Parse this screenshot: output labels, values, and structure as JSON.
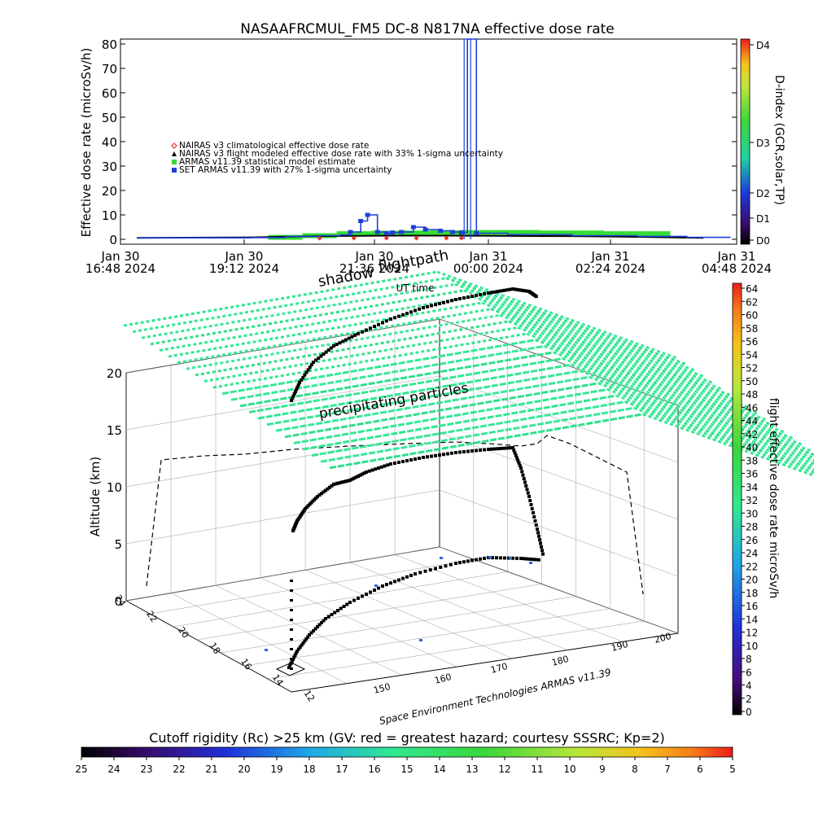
{
  "top_chart": {
    "title": "NASAAFRCMUL_FM5 DC-8   N817NA effective dose rate",
    "ylabel": "Effective dose rate (microSv/h)",
    "xlabel": "UT time",
    "ylim": [
      0,
      80
    ],
    "yticks": [
      "0",
      "10",
      "20",
      "30",
      "40",
      "50",
      "60",
      "70",
      "80"
    ],
    "xticks": [
      {
        "l1": "Jan 30",
        "l2": "16:48 2024"
      },
      {
        "l1": "Jan 30",
        "l2": "19:12 2024"
      },
      {
        "l1": "Jan 30",
        "l2": "21:36 2024"
      },
      {
        "l1": "Jan 31",
        "l2": "00:00 2024"
      },
      {
        "l1": "Jan 31",
        "l2": "02:24 2024"
      },
      {
        "l1": "Jan 31",
        "l2": "04:48 2024"
      }
    ],
    "legend": [
      {
        "label": "NAIRAS v3 climatological effective dose rate",
        "color": "#e8352a",
        "symbol": "diamond"
      },
      {
        "label": "NAIRAS v3 flight modeled effective dose rate with 33% 1-sigma uncertainty",
        "color": "#000000",
        "symbol": "triangle"
      },
      {
        "label": "ARMAS v11.39 statistical model estimate",
        "color": "#33dd33",
        "symbol": "square"
      },
      {
        "label": "SET ARMAS v11.39 with 27% 1-sigma uncertainty",
        "color": "#1f3fd6",
        "symbol": "square"
      }
    ],
    "right_axis": {
      "label": "D-index (GCR,solar,TP)",
      "ticks": [
        "D4",
        "D3",
        "D2",
        "D1",
        "D0"
      ]
    }
  },
  "chart_data": [
    {
      "type": "line",
      "title": "NASAAFRCMUL_FM5 DC-8   N817NA effective dose rate",
      "xlabel": "UT time",
      "ylabel": "Effective dose rate (microSv/h)",
      "ylim": [
        0,
        80
      ],
      "x_unit": "hours since Jan 30 16:48",
      "series": [
        {
          "name": "SET ARMAS v11.39 with 27% 1-sigma uncertainty",
          "x": [
            0.5,
            2.0,
            4.0,
            5.0,
            6.0,
            6.6,
            6.9,
            7.2,
            7.4,
            7.7,
            8.0,
            8.2,
            8.5,
            8.9,
            9.3,
            9.8,
            10.2,
            10.5,
            10.7,
            11.0,
            12.0,
            14.0,
            16.0,
            17.5,
            18.8
          ],
          "values": [
            0.6,
            0.6,
            0.7,
            1.2,
            1.5,
            1.8,
            3.0,
            7.5,
            10.0,
            3.0,
            2.5,
            2.8,
            3.0,
            5.0,
            4.0,
            3.5,
            3.0,
            2.8,
            80.0,
            2.5,
            2.0,
            1.5,
            1.2,
            0.8,
            0.6
          ]
        },
        {
          "name": "ARMAS v11.39 statistical model estimate",
          "x": [
            4.5,
            5.5,
            6.5,
            7.5,
            8.5,
            9.5,
            10.5,
            11.5,
            13.0,
            15.0,
            17.0
          ],
          "values": [
            0.8,
            1.5,
            2.3,
            2.5,
            2.6,
            2.7,
            2.8,
            2.8,
            2.6,
            2.3,
            1.0
          ]
        },
        {
          "name": "NAIRAS v3 flight modeled effective dose rate with 33% 1-sigma uncertainty",
          "x": [
            0.5,
            4.0,
            6.0,
            8.0,
            10.0,
            12.0,
            14.0,
            16.0,
            18.0
          ],
          "values": [
            0.6,
            0.8,
            1.3,
            1.5,
            1.5,
            1.4,
            1.3,
            1.0,
            0.6
          ]
        },
        {
          "name": "NAIRAS v3 climatological effective dose rate",
          "x": [
            6.0,
            7.0,
            8.0,
            9.0,
            10.0,
            10.5
          ],
          "values": [
            0.5,
            0.5,
            0.5,
            0.5,
            0.5,
            0.5
          ]
        }
      ]
    },
    {
      "type": "scatter",
      "title": "",
      "labels": [
        "shadow",
        "flightpath",
        "precipitating particles"
      ],
      "zlabel": "Altitude (km)",
      "zlim": [
        0,
        20
      ],
      "zticks": [
        "0",
        "5",
        "10",
        "15",
        "20"
      ],
      "xticks": [
        "150",
        "160",
        "170",
        "180",
        "190",
        "200"
      ],
      "yticks": [
        "12",
        "14",
        "16",
        "18",
        "20",
        "22",
        "24"
      ],
      "flightpath_altitude_km": [
        0.5,
        3,
        5.5,
        8,
        9.5,
        10.5,
        11,
        11.3,
        11.5,
        11.5,
        11.2,
        9.5,
        7,
        3,
        0.5
      ],
      "flightpath_longitude": [
        148,
        150,
        152,
        155,
        160,
        165,
        170,
        175,
        180,
        185,
        190,
        193,
        196,
        198,
        199
      ],
      "flightpath_rigidity_GV": [
        12,
        13,
        14,
        15,
        16,
        17,
        18,
        19,
        20,
        21,
        22,
        22,
        22,
        22,
        22
      ],
      "dose_colorbar_label": "flight effective dose rate microSv/h",
      "dose_colorbar_ticks": [
        "64",
        "62",
        "60",
        "58",
        "56",
        "54",
        "52",
        "50",
        "48",
        "46",
        "44",
        "42",
        "40",
        "38",
        "36",
        "34",
        "32",
        "30",
        "28",
        "26",
        "24",
        "22",
        "20",
        "18",
        "16",
        "14",
        "12",
        "10",
        "8",
        "6",
        "4",
        "2",
        "0"
      ],
      "rigidity_colorbar_label": "Cutoff rigidity (Rc) >25 km (GV: red = greatest hazard; courtesy SSSRC; Kp=2)",
      "rigidity_colorbar_ticks": [
        "25",
        "24",
        "23",
        "22",
        "21",
        "20",
        "19",
        "18",
        "17",
        "16",
        "15",
        "14",
        "13",
        "12",
        "11",
        "10",
        "9",
        "8",
        "7",
        "6",
        "5"
      ],
      "credit": "Space Environment Technologies ARMAS v11.39"
    }
  ],
  "colors": {
    "series_blue": "#1f3fd6",
    "series_green": "#33dd33",
    "particles_green": "#2fe890",
    "nairas_red": "#e8352a",
    "flightpath": "#000000"
  }
}
